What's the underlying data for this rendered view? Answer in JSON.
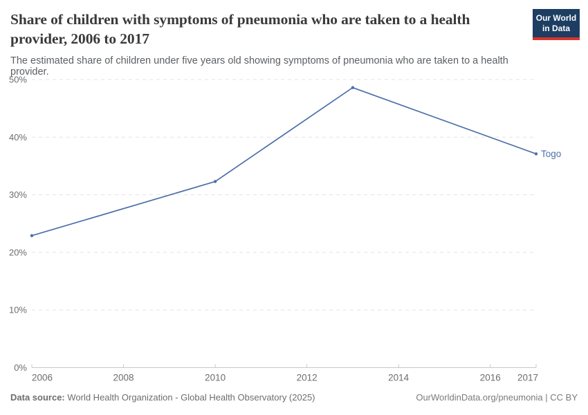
{
  "header": {
    "title": "Share of children with symptoms of pneumonia who are taken to a health provider, 2006 to 2017",
    "subtitle": "The estimated share of children under five years old showing symptoms of pneumonia who are taken to a health provider.",
    "logo": {
      "line1": "Our World",
      "line2": "in Data",
      "bg_color": "#1d3d63",
      "accent_color": "#d7342a",
      "text_color": "#ffffff"
    }
  },
  "chart_data": {
    "type": "line",
    "title": "Share of children with symptoms of pneumonia who are taken to a health provider, 2006 to 2017",
    "xlabel": "",
    "ylabel": "",
    "xlim": [
      2006,
      2017
    ],
    "ylim": [
      0,
      50
    ],
    "x_ticks": [
      2006,
      2008,
      2010,
      2012,
      2014,
      2016,
      2017
    ],
    "y_ticks": [
      0,
      10,
      20,
      30,
      40,
      50
    ],
    "y_tick_suffix": "%",
    "grid": "horizontal-dashed",
    "legend_position": "end-of-line-label",
    "series": [
      {
        "name": "Togo",
        "color": "#4c6ea9",
        "x": [
          2006,
          2010,
          2013,
          2017
        ],
        "values": [
          22.9,
          32.3,
          48.6,
          37.1
        ]
      }
    ],
    "axis_colors": {
      "gridline": "#e3e3e3",
      "axis_line": "#c8c8c8",
      "tick_label": "#6d6d6d"
    }
  },
  "footer": {
    "datasource_label": "Data source:",
    "datasource_text": " World Health Organization - Global Health Observatory (2025)",
    "link_text": "OurWorldinData.org/pneumonia",
    "separator": " | ",
    "license": "CC BY"
  }
}
